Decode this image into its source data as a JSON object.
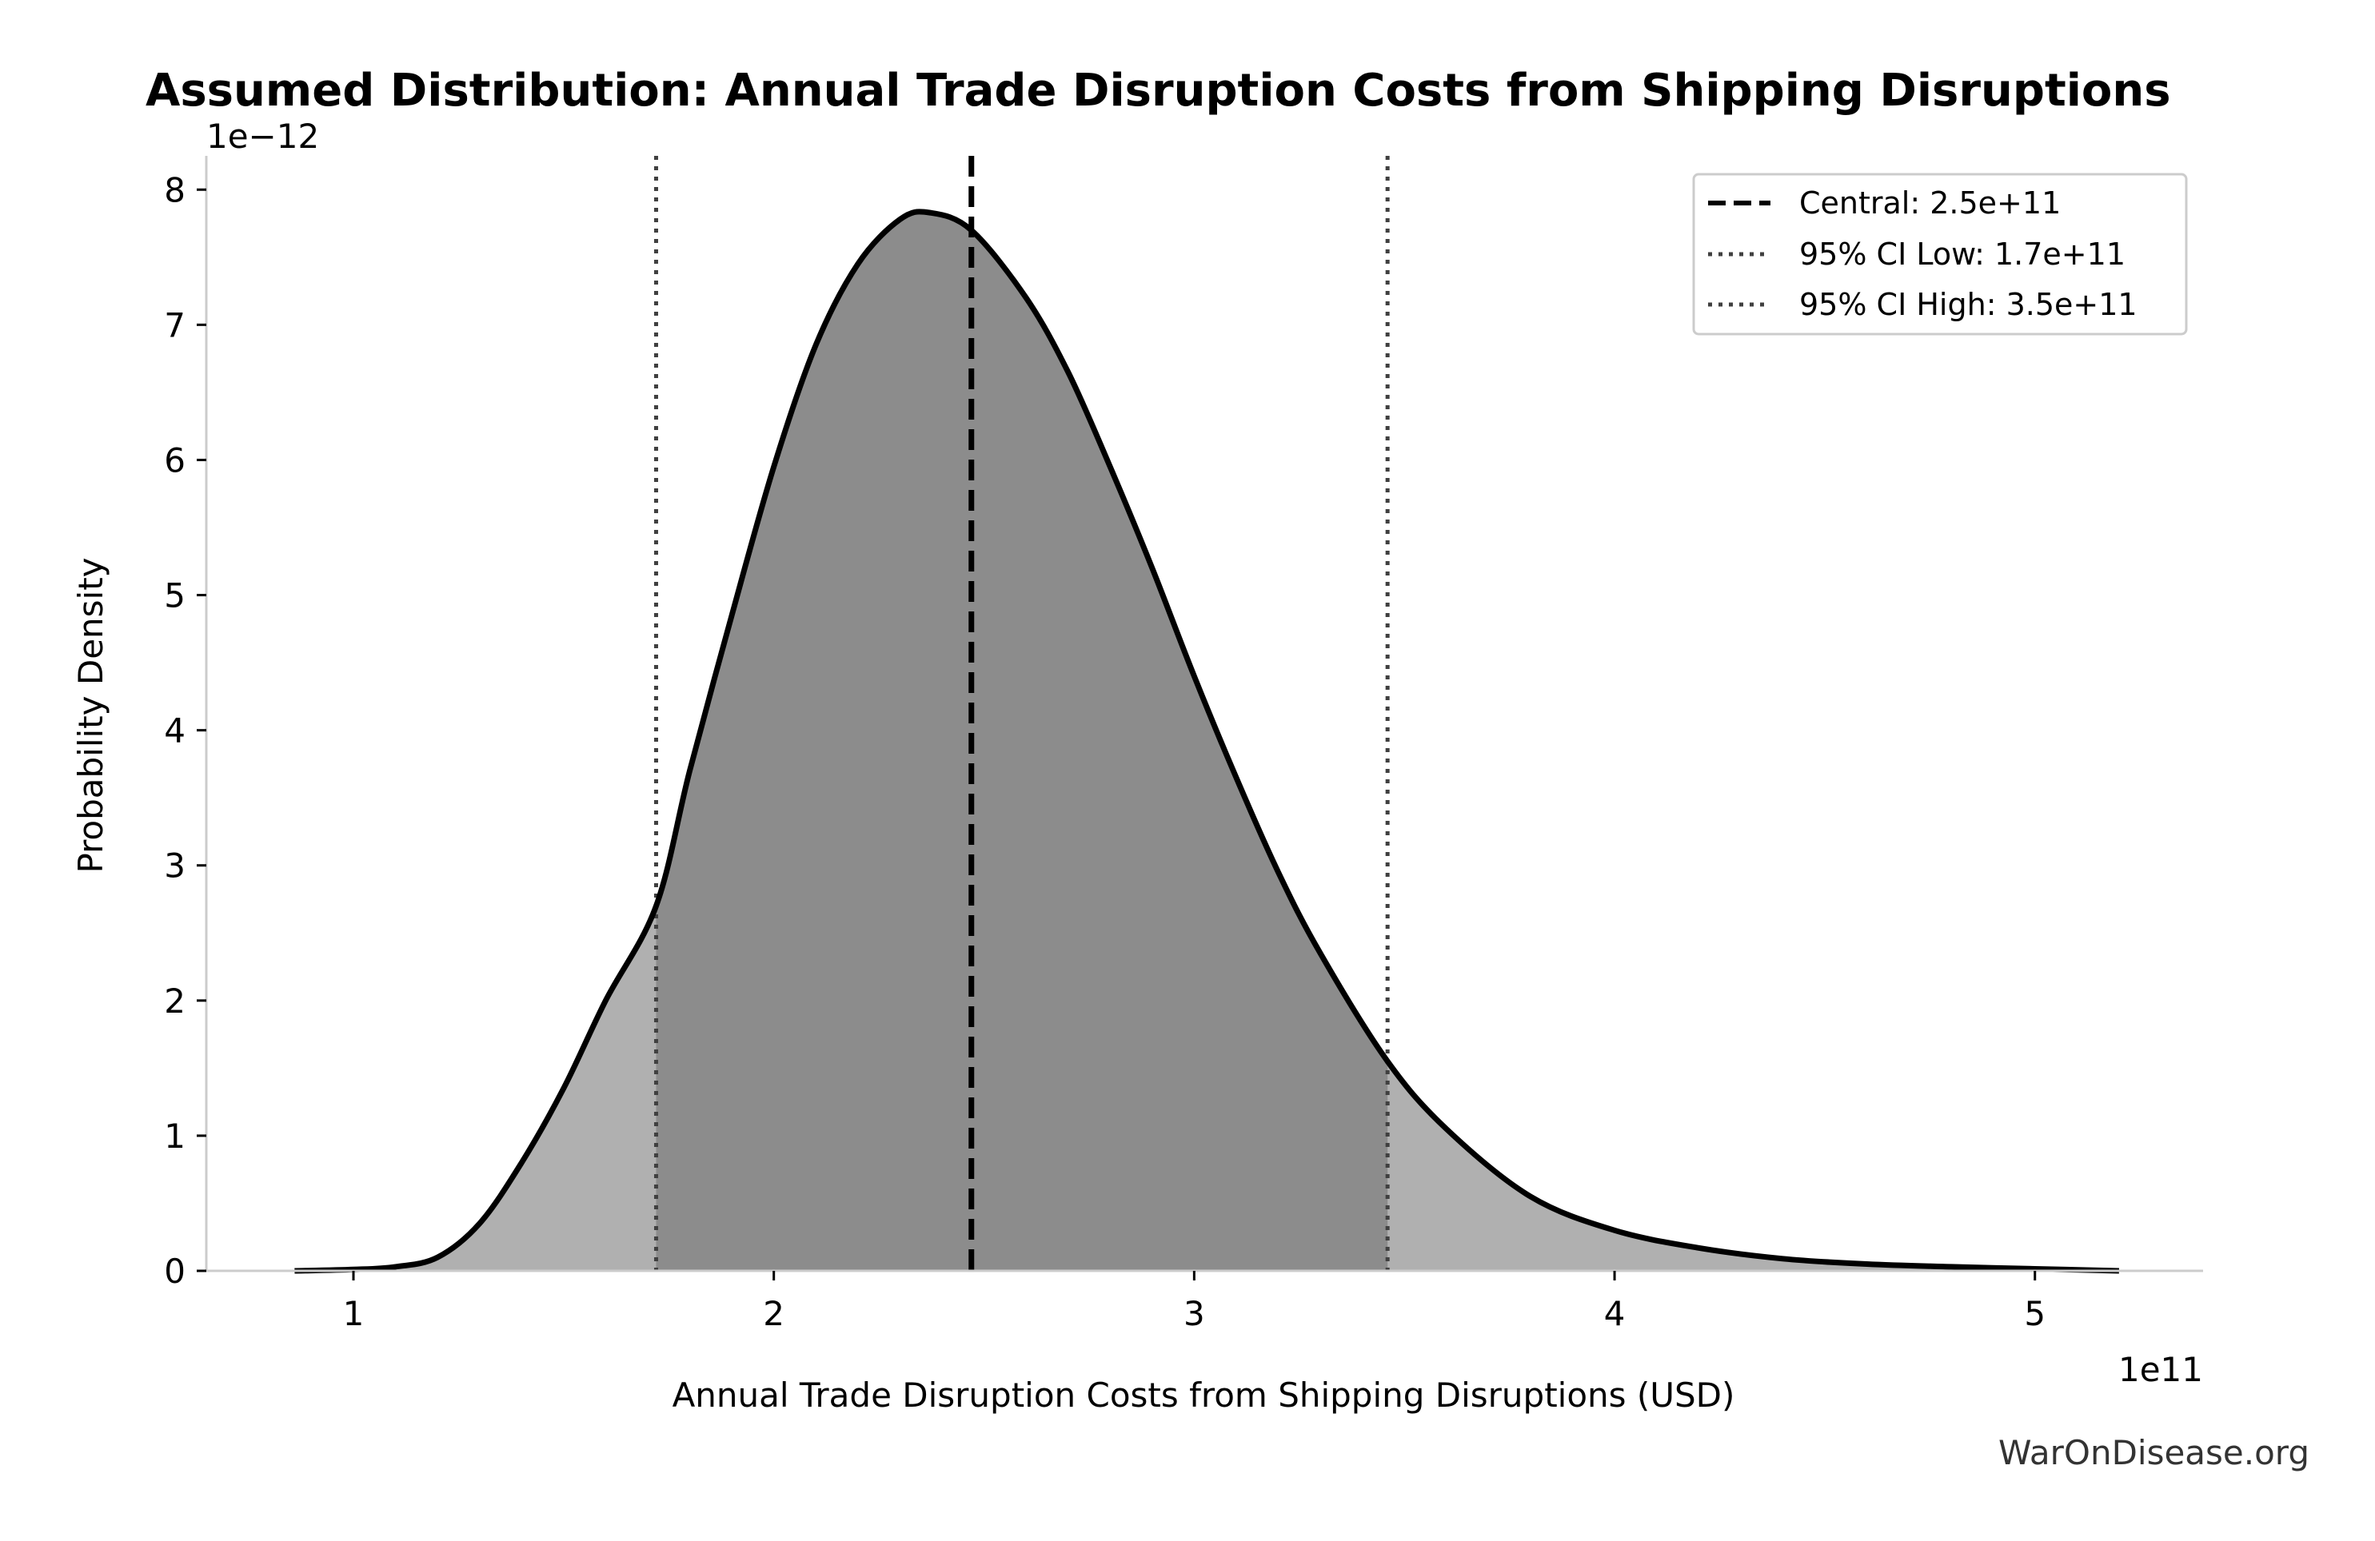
{
  "chart_data": {
    "type": "area",
    "title": "Assumed Distribution: Annual Trade Disruption Costs from Shipping Disruptions",
    "xlabel": "Annual Trade Disruption Costs from Shipping Disruptions (USD)",
    "ylabel": "Probability Density",
    "x_offset_label": "1e11",
    "y_offset_label": "1e−12",
    "xlim": [
      0.65,
      5.4
    ],
    "ylim": [
      0,
      8.25
    ],
    "xticks": [
      1,
      2,
      3,
      4,
      5
    ],
    "yticks": [
      0,
      1,
      2,
      3,
      4,
      5,
      6,
      7,
      8
    ],
    "x": [
      0.86,
      1.0,
      1.1,
      1.2,
      1.3,
      1.4,
      1.5,
      1.6,
      1.72,
      1.8,
      1.9,
      2.0,
      2.1,
      2.2,
      2.3,
      2.37,
      2.47,
      2.6,
      2.7,
      2.8,
      2.9,
      3.0,
      3.1,
      3.2,
      3.3,
      3.46,
      3.6,
      3.8,
      4.0,
      4.2,
      4.4,
      4.6,
      4.8,
      5.0,
      5.2
    ],
    "y": [
      0.0,
      0.01,
      0.03,
      0.1,
      0.35,
      0.8,
      1.35,
      2.0,
      2.7,
      3.7,
      4.85,
      5.95,
      6.85,
      7.45,
      7.78,
      7.83,
      7.7,
      7.2,
      6.65,
      5.95,
      5.2,
      4.4,
      3.65,
      2.95,
      2.35,
      1.55,
      1.05,
      0.55,
      0.3,
      0.17,
      0.09,
      0.05,
      0.03,
      0.015,
      0.0
    ],
    "central": 2.47,
    "ci_low": 1.72,
    "ci_high": 3.46,
    "legend": {
      "placement": "top-right",
      "entries": [
        "Central: 2.5e+11",
        "95% CI Low: 1.7e+11",
        "95% CI High: 3.5e+11"
      ]
    },
    "colors": {
      "tail_fill": "#b0b0b0",
      "ci_fill": "#8c8c8c",
      "curve": "#000000",
      "ci_lines": "#404040"
    },
    "grid": false
  },
  "watermark": "WarOnDisease.org"
}
